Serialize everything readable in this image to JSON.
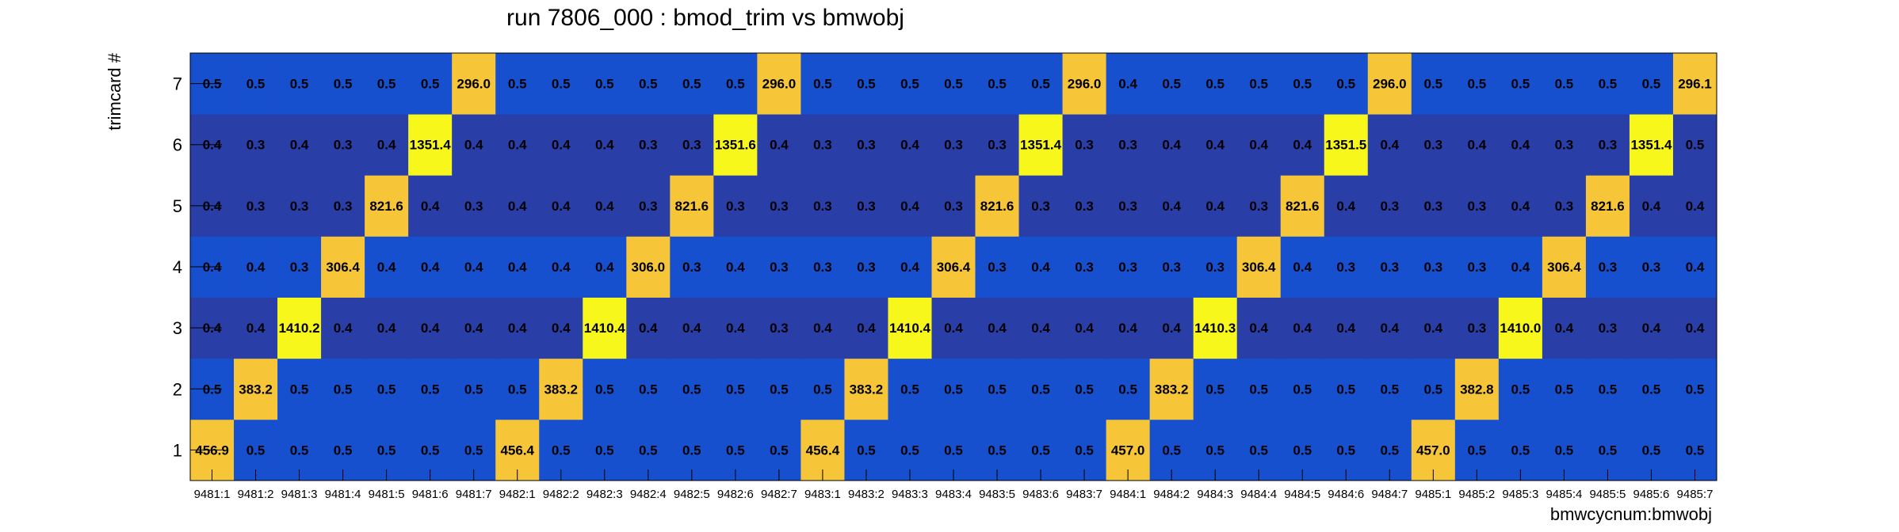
{
  "chart_data": {
    "type": "heatmap",
    "title": "run 7806_000 : bmod_trim vs bmwobj",
    "xlabel": "bmwcycnum:bmwobj",
    "ylabel": "trimcard #",
    "x_categories": [
      "9481:1",
      "9481:2",
      "9481:3",
      "9481:4",
      "9481:5",
      "9481:6",
      "9481:7",
      "9482:1",
      "9482:2",
      "9482:3",
      "9482:4",
      "9482:5",
      "9482:6",
      "9482:7",
      "9483:1",
      "9483:2",
      "9483:3",
      "9483:4",
      "9483:5",
      "9483:6",
      "9483:7",
      "9484:1",
      "9484:2",
      "9484:3",
      "9484:4",
      "9484:5",
      "9484:6",
      "9484:7",
      "9485:1",
      "9485:2",
      "9485:3",
      "9485:4",
      "9485:5",
      "9485:6",
      "9485:7"
    ],
    "y_categories": [
      "1",
      "2",
      "3",
      "4",
      "5",
      "6",
      "7"
    ],
    "values": [
      [
        "456.9",
        "0.5",
        "0.5",
        "0.5",
        "0.5",
        "0.5",
        "0.5",
        "456.4",
        "0.5",
        "0.5",
        "0.5",
        "0.5",
        "0.5",
        "0.5",
        "456.4",
        "0.5",
        "0.5",
        "0.5",
        "0.5",
        "0.5",
        "0.5",
        "457.0",
        "0.5",
        "0.5",
        "0.5",
        "0.5",
        "0.5",
        "0.5",
        "457.0",
        "0.5",
        "0.5",
        "0.5",
        "0.5",
        "0.5",
        "0.5"
      ],
      [
        "0.5",
        "383.2",
        "0.5",
        "0.5",
        "0.5",
        "0.5",
        "0.5",
        "0.5",
        "383.2",
        "0.5",
        "0.5",
        "0.5",
        "0.5",
        "0.5",
        "0.5",
        "383.2",
        "0.5",
        "0.5",
        "0.5",
        "0.5",
        "0.5",
        "0.5",
        "383.2",
        "0.5",
        "0.5",
        "0.5",
        "0.5",
        "0.5",
        "0.5",
        "382.8",
        "0.5",
        "0.5",
        "0.5",
        "0.5",
        "0.5"
      ],
      [
        "0.4",
        "0.4",
        "1410.2",
        "0.4",
        "0.4",
        "0.4",
        "0.4",
        "0.4",
        "0.4",
        "1410.4",
        "0.4",
        "0.4",
        "0.4",
        "0.3",
        "0.4",
        "0.4",
        "1410.4",
        "0.4",
        "0.4",
        "0.4",
        "0.4",
        "0.4",
        "0.4",
        "1410.3",
        "0.4",
        "0.4",
        "0.4",
        "0.4",
        "0.4",
        "0.3",
        "1410.0",
        "0.4",
        "0.3",
        "0.4",
        "0.4"
      ],
      [
        "0.4",
        "0.4",
        "0.3",
        "306.4",
        "0.4",
        "0.4",
        "0.4",
        "0.4",
        "0.4",
        "0.4",
        "306.0",
        "0.3",
        "0.4",
        "0.3",
        "0.3",
        "0.3",
        "0.4",
        "306.4",
        "0.3",
        "0.4",
        "0.3",
        "0.3",
        "0.3",
        "0.3",
        "306.4",
        "0.4",
        "0.3",
        "0.3",
        "0.3",
        "0.3",
        "0.4",
        "306.4",
        "0.3",
        "0.3",
        "0.4"
      ],
      [
        "0.4",
        "0.3",
        "0.3",
        "0.3",
        "821.6",
        "0.4",
        "0.3",
        "0.4",
        "0.4",
        "0.4",
        "0.3",
        "821.6",
        "0.3",
        "0.3",
        "0.3",
        "0.3",
        "0.4",
        "0.3",
        "821.6",
        "0.3",
        "0.3",
        "0.3",
        "0.4",
        "0.4",
        "0.3",
        "821.6",
        "0.4",
        "0.3",
        "0.3",
        "0.3",
        "0.4",
        "0.3",
        "821.6",
        "0.4",
        "0.4"
      ],
      [
        "0.4",
        "0.3",
        "0.4",
        "0.3",
        "0.4",
        "1351.4",
        "0.4",
        "0.4",
        "0.4",
        "0.4",
        "0.3",
        "0.3",
        "1351.6",
        "0.4",
        "0.3",
        "0.3",
        "0.4",
        "0.3",
        "0.3",
        "1351.4",
        "0.3",
        "0.3",
        "0.4",
        "0.4",
        "0.4",
        "0.4",
        "1351.5",
        "0.4",
        "0.3",
        "0.4",
        "0.4",
        "0.3",
        "0.3",
        "1351.4",
        "0.5"
      ],
      [
        "0.5",
        "0.5",
        "0.5",
        "0.5",
        "0.5",
        "0.5",
        "296.0",
        "0.5",
        "0.5",
        "0.5",
        "0.5",
        "0.5",
        "0.5",
        "296.0",
        "0.5",
        "0.5",
        "0.5",
        "0.5",
        "0.5",
        "0.5",
        "296.0",
        "0.4",
        "0.5",
        "0.5",
        "0.5",
        "0.5",
        "0.5",
        "296.0",
        "0.5",
        "0.5",
        "0.5",
        "0.5",
        "0.5",
        "0.5",
        "296.1"
      ]
    ],
    "color_scale": {
      "low_dark": "#2a3ea8",
      "low_mid": "#1750cf",
      "high_orange": "#f7c638",
      "high_yellow": "#f8f71c"
    },
    "grid": false,
    "legend": "none"
  }
}
